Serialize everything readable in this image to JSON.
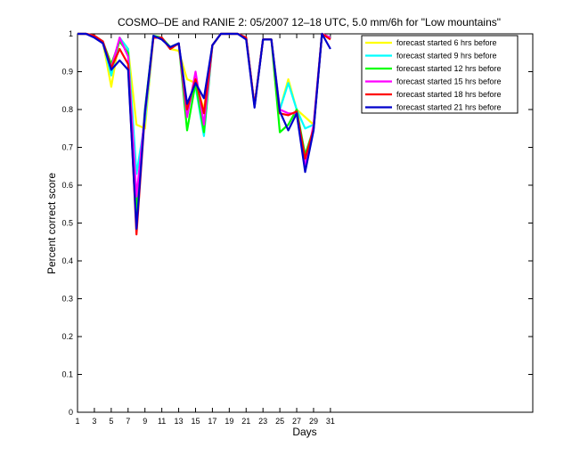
{
  "chart_data": {
    "type": "line",
    "title": "COSMO–DE and RANIE 2: 05/2007 12–18 UTC, 5.0 mm/6h for \"Low mountains\"",
    "xlabel": "Days",
    "ylabel": "Percent correct score",
    "xlim": [
      1,
      55
    ],
    "ylim": [
      0,
      1
    ],
    "x_ticks": [
      1,
      3,
      5,
      7,
      9,
      11,
      13,
      15,
      17,
      19,
      21,
      23,
      25,
      27,
      29,
      31
    ],
    "y_ticks": [
      0,
      0.1,
      0.2,
      0.3,
      0.4,
      0.5,
      0.6,
      0.7,
      0.8,
      0.9,
      1
    ],
    "y_tick_labels": [
      "0",
      "0.1",
      "0.2",
      "0.3",
      "0.4",
      "0.5",
      "0.6",
      "0.7",
      "0.8",
      "0.9",
      "1"
    ],
    "legend_position": "top-right",
    "grid": false,
    "x": [
      1,
      2,
      3,
      4,
      5,
      6,
      7,
      8,
      9,
      10,
      11,
      12,
      13,
      14,
      15,
      16,
      17,
      18,
      19,
      20,
      21,
      22,
      23,
      24,
      25,
      26,
      27,
      28,
      29,
      30,
      31
    ],
    "series": [
      {
        "name": "forecast started 6 hrs before",
        "color": "#ffff00",
        "values": [
          1,
          1,
          0.995,
          0.98,
          0.86,
          0.99,
          0.96,
          0.76,
          0.75,
          0.99,
          0.99,
          0.96,
          0.955,
          0.88,
          0.87,
          0.8,
          0.97,
          1,
          1,
          1,
          0.99,
          0.81,
          0.985,
          0.985,
          0.8,
          0.88,
          0.8,
          0.78,
          0.76,
          1,
          0.99
        ]
      },
      {
        "name": "forecast started 9 hrs before",
        "color": "#00ffff",
        "values": [
          1,
          1,
          0.995,
          0.98,
          0.89,
          0.99,
          0.96,
          0.63,
          0.77,
          0.99,
          0.99,
          0.96,
          0.975,
          0.8,
          0.86,
          0.73,
          0.97,
          1,
          1,
          1,
          0.99,
          0.81,
          0.985,
          0.985,
          0.8,
          0.87,
          0.8,
          0.75,
          0.76,
          1,
          0.99
        ]
      },
      {
        "name": "forecast started 12 hrs before",
        "color": "#00ff00",
        "values": [
          1,
          1,
          0.995,
          0.98,
          0.92,
          0.98,
          0.95,
          0.53,
          0.8,
          0.995,
          0.99,
          0.965,
          0.975,
          0.745,
          0.87,
          0.74,
          0.97,
          1,
          1,
          1,
          0.99,
          0.81,
          0.985,
          0.985,
          0.74,
          0.76,
          0.8,
          0.68,
          0.75,
          1,
          0.99
        ]
      },
      {
        "name": "forecast started 15 hrs before",
        "color": "#ff00ff",
        "values": [
          1,
          1,
          0.995,
          0.98,
          0.91,
          0.99,
          0.94,
          0.57,
          0.79,
          0.99,
          0.99,
          0.96,
          0.975,
          0.78,
          0.9,
          0.76,
          0.97,
          1,
          1,
          1,
          0.99,
          0.81,
          0.985,
          0.985,
          0.8,
          0.79,
          0.79,
          0.65,
          0.76,
          1,
          0.99
        ]
      },
      {
        "name": "forecast started 18 hrs before",
        "color": "#ff0000",
        "values": [
          1,
          1,
          0.995,
          0.98,
          0.91,
          0.96,
          0.92,
          0.47,
          0.79,
          0.99,
          0.99,
          0.96,
          0.975,
          0.8,
          0.88,
          0.79,
          0.97,
          1,
          1,
          1,
          0.99,
          0.81,
          0.985,
          0.985,
          0.79,
          0.785,
          0.795,
          0.67,
          0.75,
          1,
          0.985
        ]
      },
      {
        "name": "forecast started 21 hrs before",
        "color": "#0000cc",
        "values": [
          1,
          1,
          0.99,
          0.975,
          0.905,
          0.93,
          0.905,
          0.485,
          0.795,
          0.995,
          0.985,
          0.965,
          0.975,
          0.815,
          0.87,
          0.83,
          0.97,
          1,
          1,
          1,
          0.985,
          0.805,
          0.985,
          0.985,
          0.795,
          0.745,
          0.79,
          0.635,
          0.745,
          1,
          0.96
        ]
      }
    ]
  }
}
